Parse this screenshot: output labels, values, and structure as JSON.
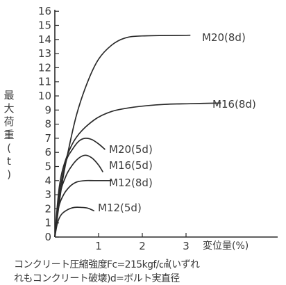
{
  "chart_data": {
    "type": "line",
    "y_axis_label_chars": [
      "最",
      "大",
      "荷",
      "重",
      "(",
      "t",
      ")"
    ],
    "x_axis_label": "変位量(%)",
    "xlim": [
      0,
      3.8
    ],
    "ylim": [
      0,
      16
    ],
    "x_ticks": [
      "1",
      "2",
      "3"
    ],
    "y_ticks": [
      "0",
      "1",
      "2",
      "3",
      "4",
      "5",
      "6",
      "7",
      "8",
      "9",
      "10",
      "11",
      "12",
      "13",
      "14",
      "15",
      "16"
    ],
    "series": [
      {
        "name": "M20(8d)",
        "points": [
          [
            0,
            0
          ],
          [
            0.15,
            3.5
          ],
          [
            0.3,
            6.0
          ],
          [
            0.5,
            8.7
          ],
          [
            0.75,
            11.0
          ],
          [
            1.0,
            12.6
          ],
          [
            1.3,
            13.6
          ],
          [
            1.6,
            14.1
          ],
          [
            2.0,
            14.25
          ],
          [
            3.1,
            14.3
          ]
        ]
      },
      {
        "name": "M16(8d)",
        "points": [
          [
            0,
            0
          ],
          [
            0.1,
            3.5
          ],
          [
            0.25,
            5.5
          ],
          [
            0.5,
            7.1
          ],
          [
            0.9,
            8.3
          ],
          [
            1.3,
            8.9
          ],
          [
            1.8,
            9.2
          ],
          [
            2.5,
            9.4
          ],
          [
            3.1,
            9.45
          ],
          [
            3.8,
            9.5
          ]
        ]
      },
      {
        "name": "M20(5d)",
        "points": [
          [
            0,
            0
          ],
          [
            0.1,
            3.0
          ],
          [
            0.25,
            5.3
          ],
          [
            0.4,
            6.2
          ],
          [
            0.55,
            6.8
          ],
          [
            0.7,
            7.0
          ],
          [
            0.85,
            6.9
          ],
          [
            1.0,
            6.6
          ],
          [
            1.15,
            6.2
          ]
        ]
      },
      {
        "name": "M16(5d)",
        "points": [
          [
            0,
            0
          ],
          [
            0.1,
            2.8
          ],
          [
            0.25,
            4.3
          ],
          [
            0.4,
            5.1
          ],
          [
            0.55,
            5.6
          ],
          [
            0.7,
            5.8
          ],
          [
            0.85,
            5.6
          ],
          [
            1.0,
            5.1
          ],
          [
            1.1,
            4.6
          ]
        ]
      },
      {
        "name": "M12(8d)",
        "points": [
          [
            0,
            0
          ],
          [
            0.08,
            2.0
          ],
          [
            0.2,
            3.0
          ],
          [
            0.35,
            3.6
          ],
          [
            0.5,
            3.9
          ],
          [
            0.7,
            4.0
          ],
          [
            0.9,
            4.0
          ],
          [
            1.3,
            4.0
          ]
        ]
      },
      {
        "name": "M12(5d)",
        "points": [
          [
            0,
            0
          ],
          [
            0.06,
            1.0
          ],
          [
            0.15,
            1.6
          ],
          [
            0.3,
            1.95
          ],
          [
            0.45,
            2.1
          ],
          [
            0.6,
            2.1
          ],
          [
            0.75,
            2.05
          ],
          [
            0.9,
            1.85
          ]
        ]
      }
    ],
    "annotations": [
      "M20(8d)",
      "M16(8d)",
      "M20(5d)",
      "M16(5d)",
      "M12(8d)",
      "M12(5d)"
    ],
    "grid": false,
    "line_color": "#2a2a2a"
  },
  "caption": {
    "line1": "コンクリート圧縮強度Fc=215kgf/㎠(いずれ",
    "line2": "れもコンクリート破壊)d=ボルト実直径"
  }
}
